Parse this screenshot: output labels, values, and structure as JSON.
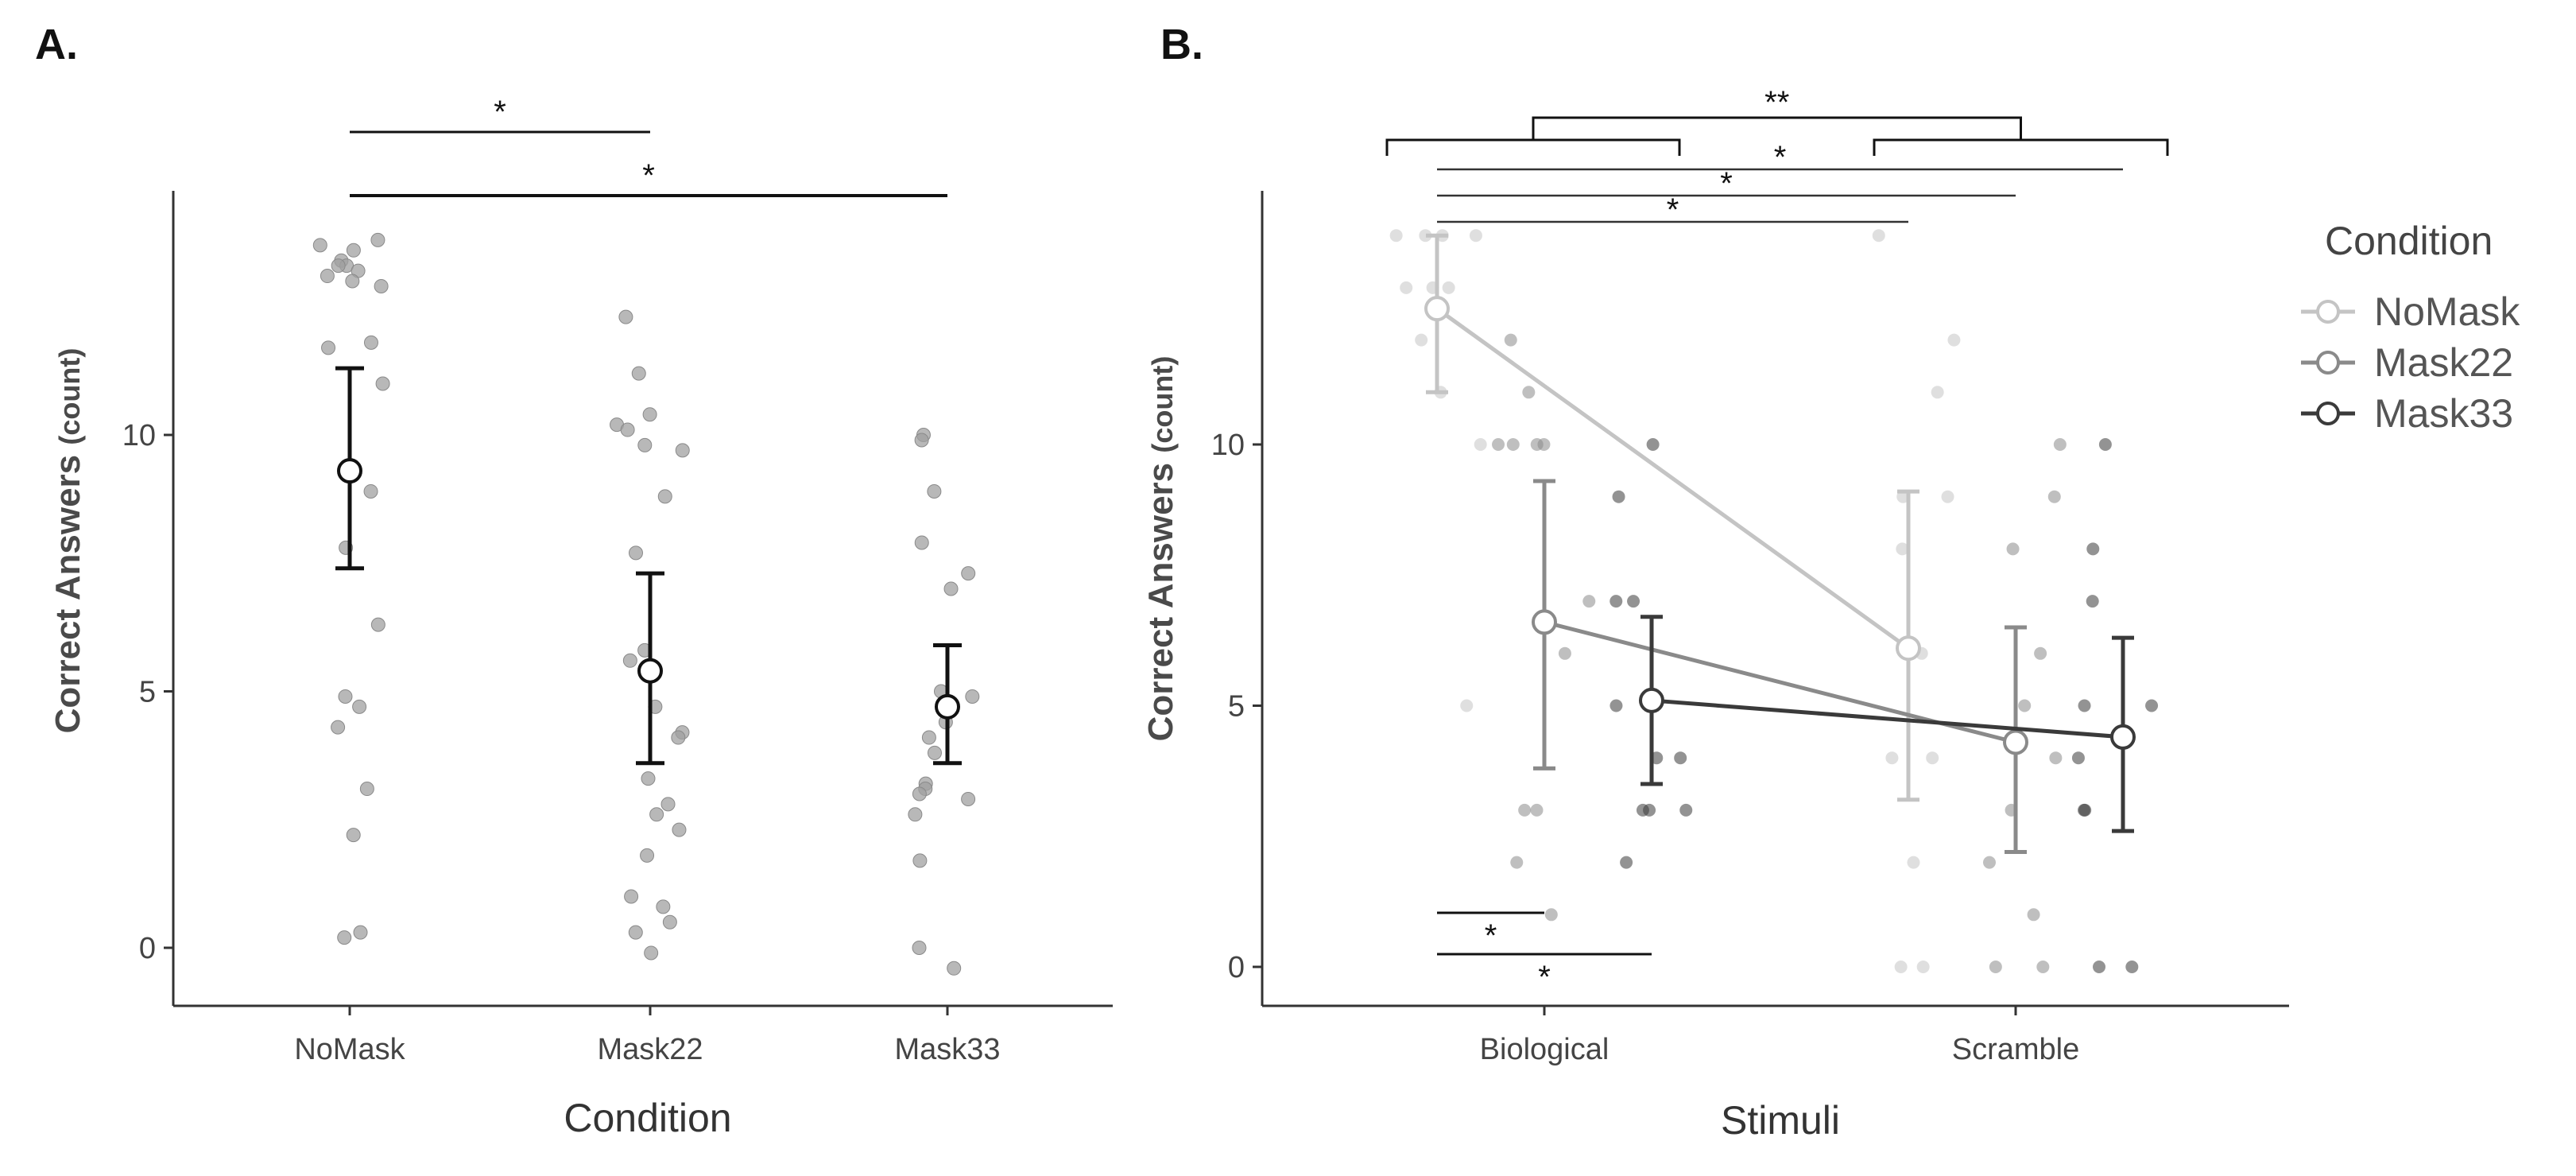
{
  "chart_data": [
    {
      "panel": "A.",
      "type": "scatter",
      "title": "",
      "xlabel": "Condition",
      "ylabel_main": "Correct Answers",
      "ylabel_unit": "(count)",
      "categories": [
        "NoMask",
        "Mask22",
        "Mask33"
      ],
      "ylim": [
        -1,
        15
      ],
      "yticks": [
        0,
        5,
        10
      ],
      "summary": [
        {
          "category": "NoMask",
          "mean": 9.3,
          "lower": 7.4,
          "upper": 11.3
        },
        {
          "category": "Mask22",
          "mean": 5.4,
          "lower": 3.6,
          "upper": 7.3
        },
        {
          "category": "Mask33",
          "mean": 4.7,
          "lower": 3.6,
          "upper": 5.9
        }
      ],
      "points": {
        "NoMask": [
          13.8,
          13.7,
          13.6,
          13.4,
          13.3,
          13.2,
          13.1,
          13.3,
          13.0,
          12.9,
          11.8,
          11.7,
          11.0,
          8.9,
          7.8,
          6.3,
          4.9,
          4.7,
          4.3,
          3.1,
          2.2,
          0.3,
          0.2
        ],
        "Mask22": [
          12.3,
          11.2,
          10.4,
          10.2,
          10.1,
          9.8,
          9.7,
          8.8,
          7.7,
          5.8,
          5.6,
          4.7,
          4.2,
          4.1,
          3.3,
          2.8,
          2.6,
          2.3,
          1.8,
          1.0,
          0.8,
          0.5,
          0.3,
          -0.1
        ],
        "Mask33": [
          10.0,
          9.9,
          8.9,
          7.9,
          7.3,
          7.0,
          5.0,
          4.9,
          4.4,
          4.1,
          3.8,
          3.2,
          3.1,
          3.0,
          2.9,
          2.6,
          1.7,
          0.0,
          -0.4
        ]
      },
      "significance": [
        {
          "from": "NoMask",
          "to": "Mask22",
          "label": "*"
        },
        {
          "from": "NoMask",
          "to": "Mask33",
          "label": "*"
        }
      ]
    },
    {
      "panel": "B.",
      "type": "line",
      "title": "",
      "xlabel": "Stimuli",
      "ylabel_main": "Correct Answers",
      "ylabel_unit": "(count)",
      "categories": [
        "Biological",
        "Scramble"
      ],
      "ylim": [
        -1,
        15
      ],
      "yticks": [
        0,
        5,
        10
      ],
      "legend_title": "Condition",
      "legend_position": "right",
      "series": [
        {
          "name": "NoMask",
          "color": "#c4c4c4",
          "values": [
            12.6,
            6.1
          ],
          "lower": [
            11.0,
            3.2
          ],
          "upper": [
            14.0,
            9.1
          ],
          "points": [
            [
              14,
              14,
              14,
              14,
              13,
              13,
              13,
              12,
              11,
              10,
              5
            ],
            [
              14,
              12,
              11,
              9,
              9,
              8,
              6,
              4,
              4,
              2,
              0,
              0
            ]
          ]
        },
        {
          "name": "Mask22",
          "color": "#8a8a8a",
          "values": [
            6.6,
            4.3
          ],
          "lower": [
            3.8,
            2.2
          ],
          "upper": [
            9.3,
            6.5
          ],
          "points": [
            [
              12,
              11,
              10,
              10,
              10,
              10,
              7,
              6,
              3,
              3,
              2,
              1
            ],
            [
              10,
              9,
              8,
              6,
              5,
              4,
              3,
              2,
              1,
              0,
              0
            ]
          ]
        },
        {
          "name": "Mask33",
          "color": "#3a3a3a",
          "values": [
            5.1,
            4.4
          ],
          "lower": [
            3.5,
            2.6
          ],
          "upper": [
            6.7,
            6.3
          ],
          "points": [
            [
              10,
              9,
              7,
              7,
              5,
              4,
              4,
              3,
              3,
              3,
              2
            ],
            [
              10,
              8,
              7,
              5,
              5,
              4,
              3,
              3,
              0,
              0
            ]
          ]
        }
      ],
      "significance": [
        {
          "level": "bracket",
          "from": "Biological group",
          "to": "Scramble group",
          "label": "**"
        },
        {
          "level": "wide",
          "from": "NoMask Biological",
          "to": "Mask33 Scramble",
          "label": "*"
        },
        {
          "level": "mid",
          "from": "NoMask Biological",
          "to": "Mask22 Scramble",
          "label": "*"
        },
        {
          "level": "narrow",
          "from": "NoMask Biological",
          "to": "NoMask Scramble",
          "label": "*"
        },
        {
          "level": "bottom",
          "from": "NoMask Biological",
          "to": "Mask22 Biological",
          "label": "*"
        },
        {
          "level": "bottom",
          "from": "NoMask Biological",
          "to": "Mask33 Biological",
          "label": "*"
        }
      ]
    }
  ]
}
